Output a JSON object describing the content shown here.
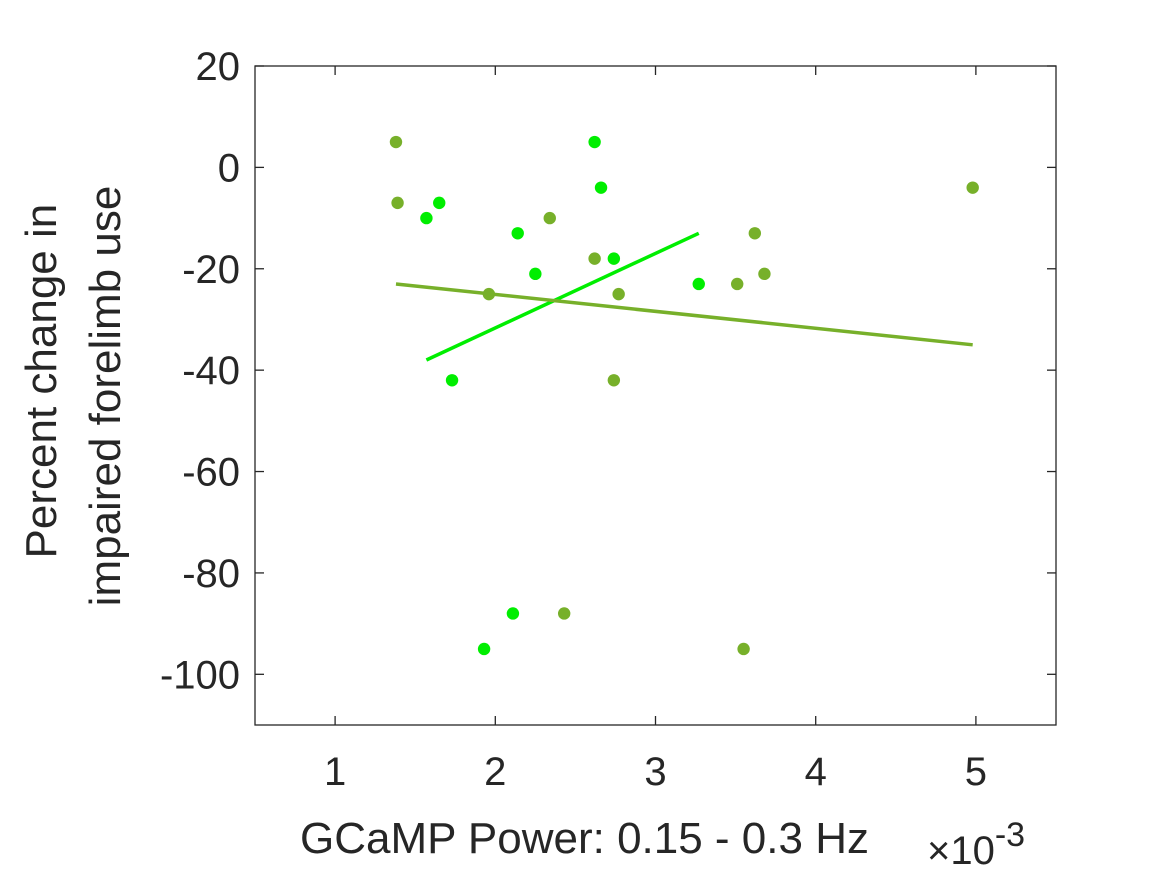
{
  "chart_data": {
    "type": "scatter",
    "xlabel": "GCaMP Power: 0.15 - 0.3 Hz",
    "ylabel_line1": "Percent change in",
    "ylabel_line2": "impaired forelimb use",
    "x_exponent_label": "×10",
    "x_exponent_power": "-3",
    "xlim": [
      0.5,
      5.5
    ],
    "ylim": [
      -110,
      20
    ],
    "x_scale_factor": 0.001,
    "xticks": [
      1,
      2,
      3,
      4,
      5
    ],
    "yticks": [
      20,
      0,
      -20,
      -40,
      -60,
      -80,
      -100
    ],
    "series": [
      {
        "color": "#00ee00",
        "points": [
          {
            "x": 2.62,
            "y": 5
          },
          {
            "x": 2.66,
            "y": -4
          },
          {
            "x": 1.65,
            "y": -7
          },
          {
            "x": 1.57,
            "y": -10
          },
          {
            "x": 2.14,
            "y": -13
          },
          {
            "x": 2.25,
            "y": -21
          },
          {
            "x": 2.74,
            "y": -18
          },
          {
            "x": 3.27,
            "y": -23
          },
          {
            "x": 1.73,
            "y": -42
          },
          {
            "x": 2.11,
            "y": -88
          },
          {
            "x": 1.93,
            "y": -95
          }
        ],
        "fit": {
          "x0": 1.57,
          "y0": -38,
          "x1": 3.27,
          "y1": -13
        }
      },
      {
        "color": "#77b02a",
        "points": [
          {
            "x": 1.38,
            "y": 5
          },
          {
            "x": 1.39,
            "y": -7
          },
          {
            "x": 2.34,
            "y": -10
          },
          {
            "x": 1.96,
            "y": -25
          },
          {
            "x": 2.62,
            "y": -18
          },
          {
            "x": 2.77,
            "y": -25
          },
          {
            "x": 2.74,
            "y": -42
          },
          {
            "x": 3.51,
            "y": -23
          },
          {
            "x": 3.62,
            "y": -13
          },
          {
            "x": 3.68,
            "y": -21
          },
          {
            "x": 2.43,
            "y": -88
          },
          {
            "x": 3.55,
            "y": -95
          },
          {
            "x": 4.98,
            "y": -4
          }
        ],
        "fit": {
          "x0": 1.38,
          "y0": -23,
          "x1": 4.98,
          "y1": -35
        }
      }
    ],
    "grid": false,
    "box": true
  }
}
